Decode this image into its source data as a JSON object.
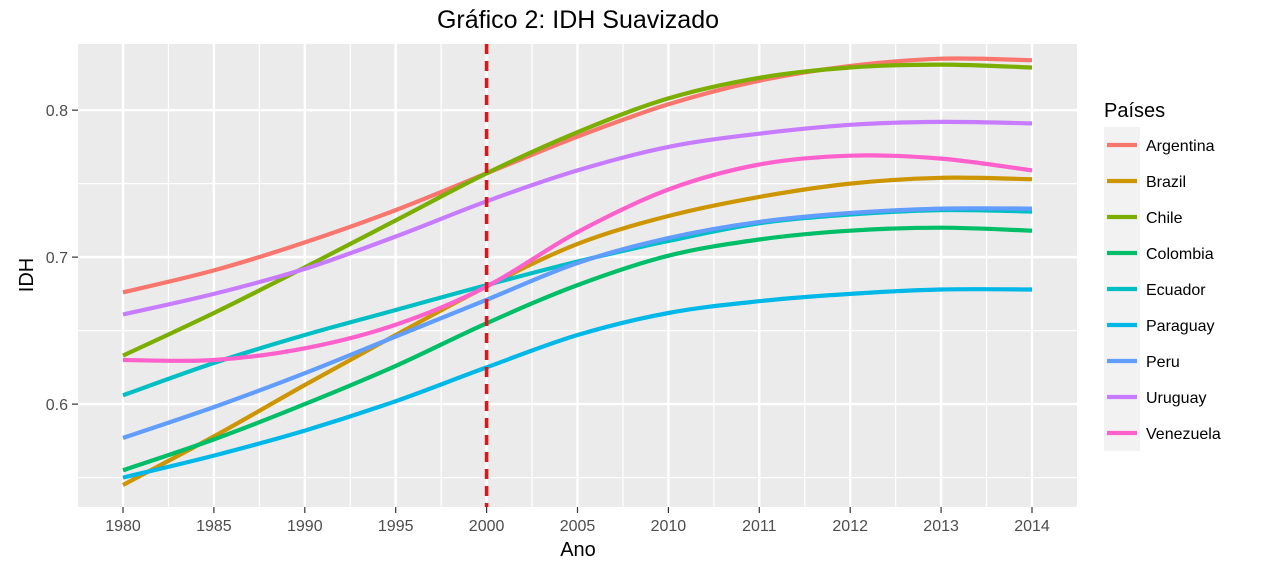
{
  "chart_data": {
    "type": "line",
    "title": "Gráfico 2: IDH Suavizado",
    "xlabel": "Ano",
    "ylabel": "IDH",
    "x_categories": [
      "1980",
      "1985",
      "1990",
      "1995",
      "2000",
      "2005",
      "2010",
      "2011",
      "2012",
      "2013",
      "2014"
    ],
    "y_ticks": [
      0.6,
      0.7,
      0.8
    ],
    "y_tick_labels": [
      "0.6",
      "0.7",
      "0.8"
    ],
    "ylim": [
      0.53,
      0.845
    ],
    "grid": true,
    "legend_title": "Países",
    "legend_position": "right",
    "annotations": [
      {
        "type": "vline",
        "x": "2000",
        "color": "#d7191c",
        "style": "dashed"
      }
    ],
    "series": [
      {
        "name": "Argentina",
        "color": "#f8766d",
        "values": [
          0.676,
          0.691,
          0.71,
          0.732,
          0.757,
          0.782,
          0.804,
          0.82,
          0.83,
          0.835,
          0.834
        ]
      },
      {
        "name": "Brazil",
        "color": "#cd9600",
        "values": [
          0.545,
          0.578,
          0.613,
          0.647,
          0.68,
          0.709,
          0.728,
          0.741,
          0.75,
          0.754,
          0.753
        ]
      },
      {
        "name": "Chile",
        "color": "#7cae00",
        "values": [
          0.633,
          0.662,
          0.693,
          0.725,
          0.757,
          0.785,
          0.808,
          0.822,
          0.829,
          0.831,
          0.829
        ]
      },
      {
        "name": "Colombia",
        "color": "#00be67",
        "values": [
          0.555,
          0.576,
          0.6,
          0.626,
          0.655,
          0.681,
          0.701,
          0.712,
          0.718,
          0.72,
          0.718
        ]
      },
      {
        "name": "Ecuador",
        "color": "#00bfc4",
        "values": [
          0.606,
          0.628,
          0.647,
          0.664,
          0.681,
          0.697,
          0.711,
          0.723,
          0.729,
          0.732,
          0.731
        ]
      },
      {
        "name": "Paraguay",
        "color": "#00b8e7",
        "values": [
          0.55,
          0.565,
          0.582,
          0.602,
          0.625,
          0.647,
          0.662,
          0.67,
          0.675,
          0.678,
          0.678
        ]
      },
      {
        "name": "Peru",
        "color": "#619cff",
        "values": [
          0.577,
          0.598,
          0.621,
          0.646,
          0.671,
          0.696,
          0.713,
          0.724,
          0.73,
          0.733,
          0.733
        ]
      },
      {
        "name": "Uruguay",
        "color": "#c77cff",
        "values": [
          0.661,
          0.675,
          0.692,
          0.714,
          0.738,
          0.759,
          0.775,
          0.784,
          0.79,
          0.792,
          0.791
        ]
      },
      {
        "name": "Venezuela",
        "color": "#ff61cc",
        "values": [
          0.63,
          0.63,
          0.638,
          0.654,
          0.68,
          0.717,
          0.746,
          0.763,
          0.769,
          0.767,
          0.759
        ]
      }
    ]
  }
}
